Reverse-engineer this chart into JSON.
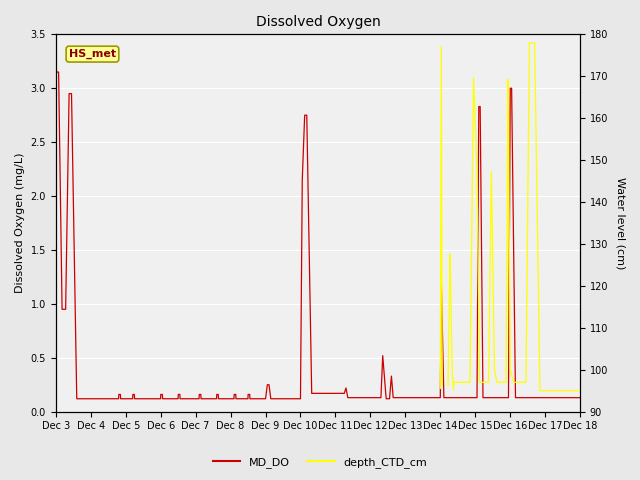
{
  "title": "Dissolved Oxygen",
  "ylabel_left": "Dissolved Oxygen (mg/L)",
  "ylabel_right": "Water level (cm)",
  "ylim_left": [
    0.0,
    3.5
  ],
  "ylim_right": [
    90,
    180
  ],
  "yticks_left": [
    0.0,
    0.5,
    1.0,
    1.5,
    2.0,
    2.5,
    3.0,
    3.5
  ],
  "yticks_right": [
    90,
    100,
    110,
    120,
    130,
    140,
    150,
    160,
    170,
    180
  ],
  "fig_bg_color": "#e8e8e8",
  "plot_bg_color": "#f0f0f0",
  "annotation_text": "HS_met",
  "annotation_bg": "#ffff99",
  "annotation_border": "#999900",
  "color_red": "#cc0000",
  "color_yellow": "#ffff00",
  "legend_items": [
    "MD_DO",
    "depth_CTD_cm"
  ],
  "title_fontsize": 10,
  "axis_label_fontsize": 8,
  "tick_fontsize": 7,
  "legend_fontsize": 8
}
